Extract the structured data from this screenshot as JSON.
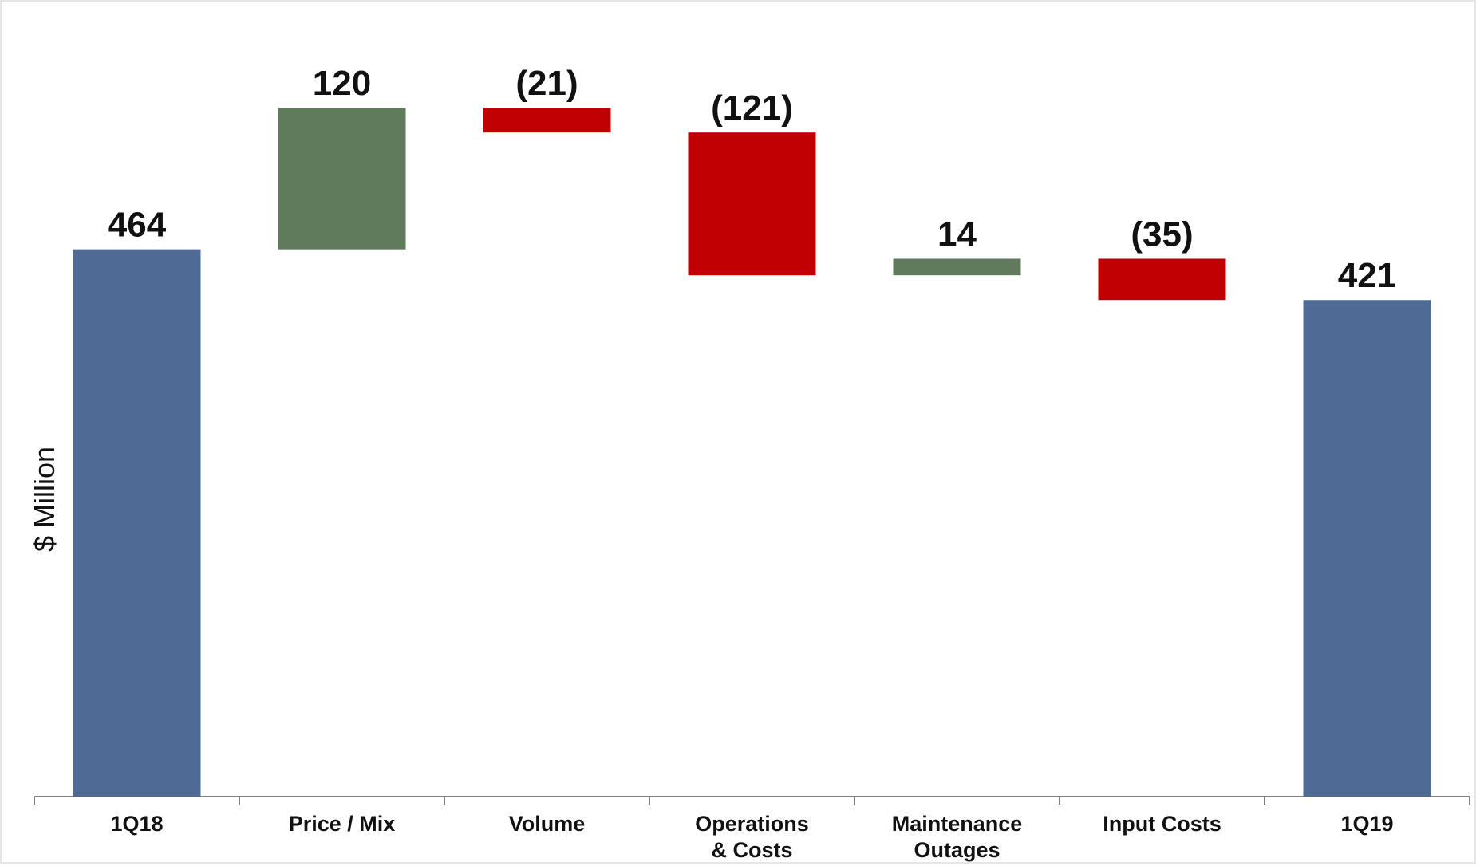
{
  "chart_data": {
    "type": "bar",
    "subtype": "waterfall",
    "title": "",
    "xlabel": "",
    "ylabel": "$ Million",
    "ylim": [
      0,
      674
    ],
    "grid": false,
    "legend": "none",
    "categories": [
      [
        "1Q18"
      ],
      [
        "Price / Mix"
      ],
      [
        "Volume"
      ],
      [
        "Operations",
        "& Costs"
      ],
      [
        "Maintenance",
        "Outages"
      ],
      [
        "Input Costs"
      ],
      [
        "1Q19"
      ]
    ],
    "values": [
      464,
      120,
      -21,
      -121,
      14,
      -35,
      421
    ],
    "kinds": [
      "total",
      "delta",
      "delta",
      "delta",
      "delta",
      "delta",
      "total"
    ],
    "data_labels": [
      "464",
      "120",
      "(21)",
      "(121)",
      "14",
      "(35)",
      "421"
    ],
    "colors": {
      "total": "#4f6a94",
      "increase": "#5f7b5b",
      "decrease": "#c00000",
      "axis": "#7f7f7f"
    }
  }
}
